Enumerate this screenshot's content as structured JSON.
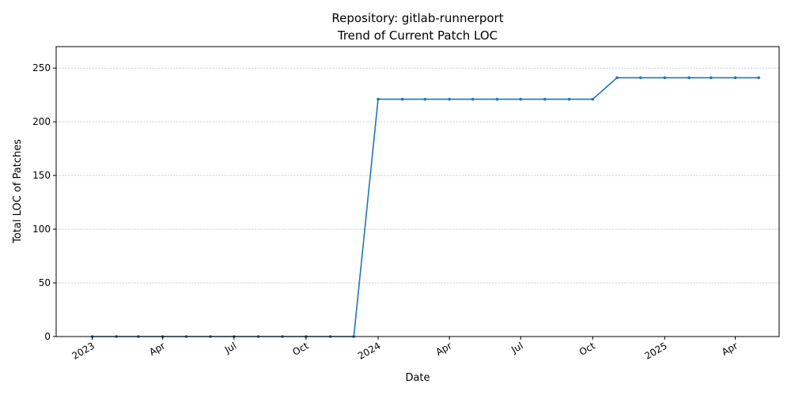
{
  "chart_data": {
    "type": "line",
    "title_line1": "Repository: gitlab-runnerport",
    "title_line2": "Trend of Current Patch LOC",
    "xlabel": "Date",
    "ylabel": "Total LOC of Patches",
    "ylim": [
      0,
      270
    ],
    "yticks": [
      0,
      50,
      100,
      150,
      200,
      250
    ],
    "xlim": [
      "2022-11-16",
      "2025-05-27"
    ],
    "xticks": [
      {
        "date": "2023-01-01",
        "label": "2023"
      },
      {
        "date": "2023-04-01",
        "label": "Apr"
      },
      {
        "date": "2023-07-01",
        "label": "Jul"
      },
      {
        "date": "2023-10-01",
        "label": "Oct"
      },
      {
        "date": "2024-01-01",
        "label": "2024"
      },
      {
        "date": "2024-04-01",
        "label": "Apr"
      },
      {
        "date": "2024-07-01",
        "label": "Jul"
      },
      {
        "date": "2024-10-01",
        "label": "Oct"
      },
      {
        "date": "2025-01-01",
        "label": "2025"
      },
      {
        "date": "2025-04-01",
        "label": "Apr"
      }
    ],
    "grid": "y-dashed",
    "line_color": "#1f77b4",
    "series": [
      {
        "x": [
          "2023-01-01",
          "2023-02-01",
          "2023-03-01",
          "2023-04-01",
          "2023-05-01",
          "2023-06-01",
          "2023-07-01",
          "2023-08-01",
          "2023-09-01",
          "2023-10-01",
          "2023-11-01",
          "2023-12-01",
          "2024-01-01",
          "2024-02-01",
          "2024-03-01",
          "2024-04-01",
          "2024-05-01",
          "2024-06-01",
          "2024-07-01",
          "2024-08-01",
          "2024-09-01",
          "2024-10-01",
          "2024-11-01",
          "2024-12-01",
          "2025-01-01",
          "2025-02-01",
          "2025-03-01",
          "2025-04-01",
          "2025-05-01"
        ],
        "y": [
          0,
          0,
          0,
          0,
          0,
          0,
          0,
          0,
          0,
          0,
          0,
          0,
          221,
          221,
          221,
          221,
          221,
          221,
          221,
          221,
          221,
          221,
          241,
          241,
          241,
          241,
          241,
          241,
          241
        ]
      }
    ]
  }
}
